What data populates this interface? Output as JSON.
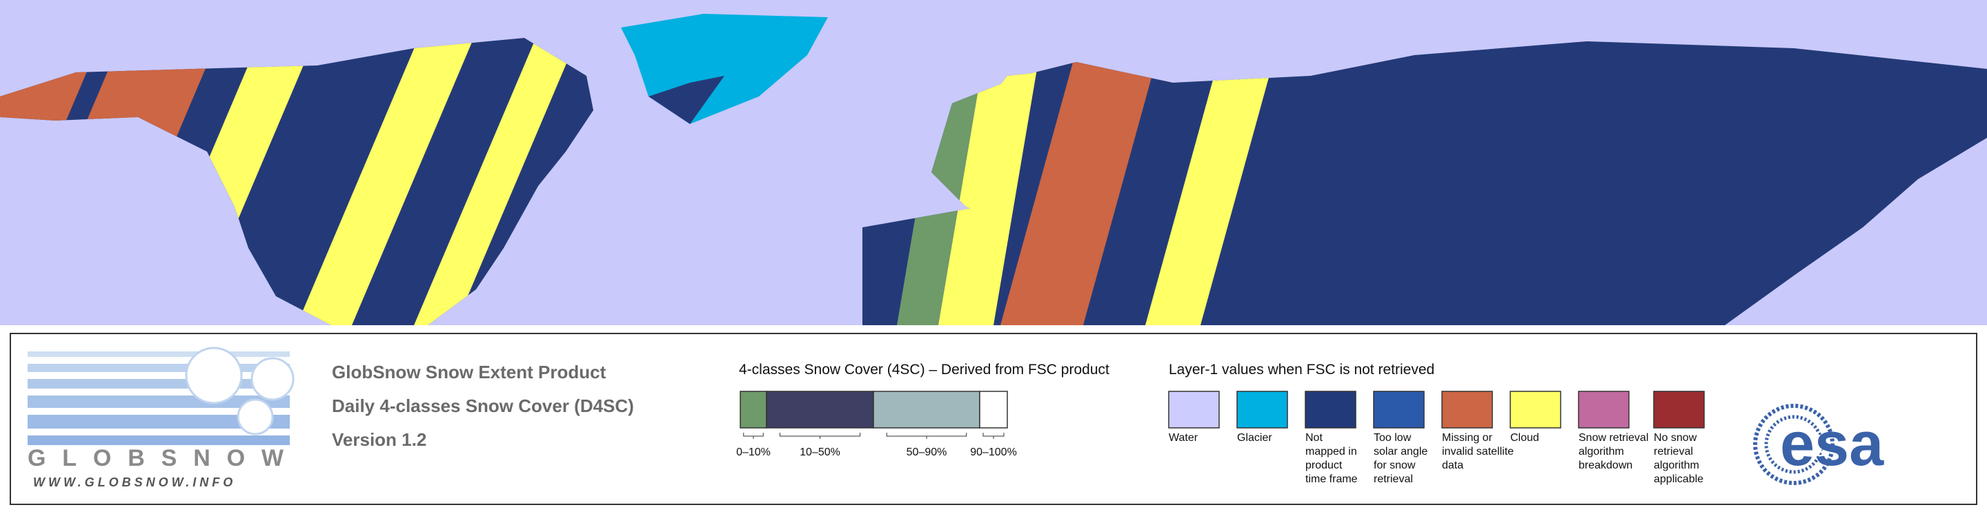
{
  "logo": {
    "name": "GLOBSNOW",
    "url": "WWW.GLOBSNOW.INFO"
  },
  "product": {
    "lines": [
      "GlobSnow Snow Extent Product",
      "Daily 4-classes Snow Cover (D4SC)",
      "Version 1.2"
    ]
  },
  "legend_4sc": {
    "title": "4-classes Snow Cover (4SC) – Derived from FSC product",
    "classes": [
      {
        "label": "0–10%",
        "color": "#6f9a6a"
      },
      {
        "label": "10–50%",
        "color": "#3e3f62"
      },
      {
        "label": "50–90%",
        "color": "#a0b8bc"
      },
      {
        "label": "90–100%",
        "color": "#ffffff"
      }
    ]
  },
  "legend_layer1": {
    "title": "Layer-1 values when FSC is not retrieved",
    "items": [
      {
        "lines": [
          "Water"
        ],
        "color": "#ccccff"
      },
      {
        "lines": [
          "Glacier"
        ],
        "color": "#00b0e0"
      },
      {
        "lines": [
          "Not",
          "mapped in",
          "product",
          "time frame"
        ],
        "color": "#233a7a"
      },
      {
        "lines": [
          "Too low",
          "solar angle",
          "for snow",
          "retrieval"
        ],
        "color": "#2b5aab"
      },
      {
        "lines": [
          "Missing or",
          "invalid satellite",
          "data"
        ],
        "color": "#cc6644"
      },
      {
        "lines": [
          "Cloud"
        ],
        "color": "#ffff66"
      },
      {
        "lines": [
          "Snow retrieval",
          "algorithm",
          "breakdown"
        ],
        "color": "#c06aa0"
      },
      {
        "lines": [
          "No snow",
          "retrieval",
          "algorithm",
          "applicable"
        ],
        "color": "#9b2c30"
      }
    ]
  },
  "esa": "esa"
}
